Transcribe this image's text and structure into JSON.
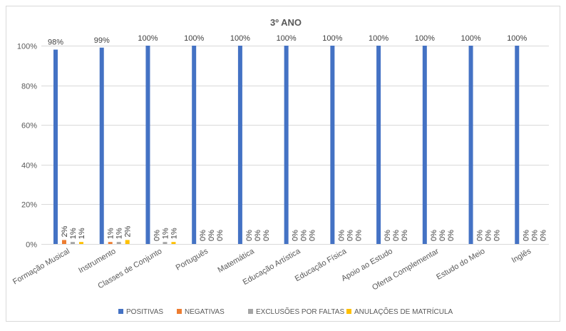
{
  "chart_data": {
    "type": "bar",
    "title": "3º ANO",
    "xlabel": "",
    "ylabel": "",
    "ylim": [
      0,
      100
    ],
    "yticks": [
      "0%",
      "20%",
      "40%",
      "60%",
      "80%",
      "100%"
    ],
    "ytick_values": [
      0,
      20,
      40,
      60,
      80,
      100
    ],
    "grid": true,
    "legend_position": "bottom",
    "categories": [
      "Formação Musical",
      "Instrumento",
      "Classes de Conjunto",
      "Português",
      "Matemática",
      "Educação Artística",
      "Educação Física",
      "Apoio ao Estudo",
      "Oferta Complementar",
      "Estudo do Meio",
      "Inglês"
    ],
    "series": [
      {
        "name": "POSITIVAS",
        "color": "#4472c4",
        "values": [
          98,
          99,
          100,
          100,
          100,
          100,
          100,
          100,
          100,
          100,
          100
        ],
        "labels": [
          "98%",
          "99%",
          "100%",
          "100%",
          "100%",
          "100%",
          "100%",
          "100%",
          "100%",
          "100%",
          "100%"
        ]
      },
      {
        "name": "NEGATIVAS",
        "color": "#ed7d31",
        "values": [
          2,
          1,
          0,
          0,
          0,
          0,
          0,
          0,
          0,
          0,
          0
        ],
        "labels": [
          "2%",
          "1%",
          "0%",
          "0%",
          "0%",
          "0%",
          "0%",
          "0%",
          "0%",
          "0%",
          "0%"
        ]
      },
      {
        "name": "EXCLUSÕES POR FALTAS",
        "color": "#a5a5a5",
        "values": [
          1,
          1,
          1,
          0,
          0,
          0,
          0,
          0,
          0,
          0,
          0
        ],
        "labels": [
          "1%",
          "1%",
          "1%",
          "0%",
          "0%",
          "0%",
          "0%",
          "0%",
          "0%",
          "0%",
          "0%"
        ]
      },
      {
        "name": "ANULAÇÕES DE MATRÍCULA",
        "color": "#ffc000",
        "values": [
          1,
          2,
          1,
          0,
          0,
          0,
          0,
          0,
          0,
          0,
          0
        ],
        "labels": [
          "1%",
          "2%",
          "1%",
          "0%",
          "0%",
          "0%",
          "0%",
          "0%",
          "0%",
          "0%",
          "0%"
        ]
      }
    ]
  }
}
